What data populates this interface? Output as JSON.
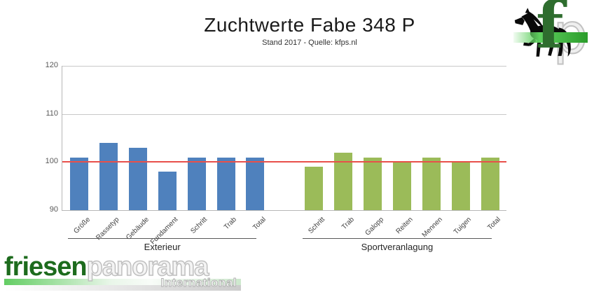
{
  "header": {
    "title": "Zuchtwerte Fabe 348 P",
    "subtitle": "Stand 2017 - Quelle: kfps.nl"
  },
  "chart_data": {
    "type": "bar",
    "title": "Zuchtwerte Fabe 348 P",
    "subtitle": "Stand 2017 - Quelle: kfps.nl",
    "ylim": [
      90,
      120
    ],
    "yticks": [
      90,
      100,
      110,
      120
    ],
    "grid": "horizontal",
    "legend": "none",
    "reference_line": 100,
    "reference_line_color": "#e8504a",
    "grid_color": "#c9c9c9",
    "groups": [
      {
        "label": "Exterieur",
        "color": "#4f81bd",
        "categories": [
          "Größe",
          "Rassetyp",
          "Gebäude",
          "Fundament",
          "Schritt",
          "Trab",
          "Total"
        ],
        "values": [
          101,
          104,
          103,
          98,
          101,
          101,
          101
        ]
      },
      {
        "label": "Sportveranlagung",
        "color": "#9bbb59",
        "categories": [
          "Schritt",
          "Trab",
          "Galopp",
          "Reiten",
          "Mennen",
          "Tuigen",
          "Total"
        ],
        "values": [
          99,
          102,
          101,
          100,
          101,
          100,
          101
        ]
      }
    ]
  },
  "kfp_logo": {
    "f": "f",
    "p": "p"
  },
  "footer_logo": {
    "part1": "friesen",
    "part2": "panorama",
    "sub": "International"
  }
}
